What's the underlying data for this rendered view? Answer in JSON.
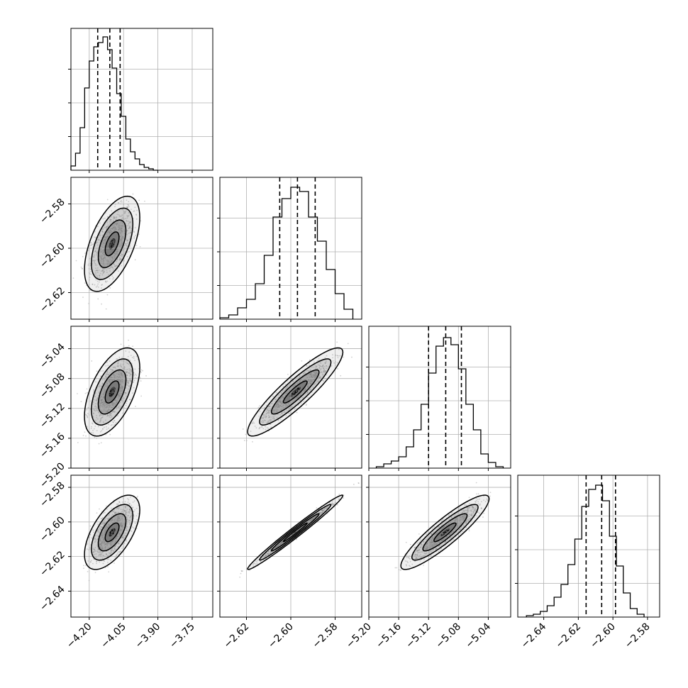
{
  "chart_data": {
    "type": "corner",
    "title": "",
    "grid": true,
    "parameters": [
      {
        "range": [
          -4.28,
          -3.66
        ],
        "ticks": [
          -4.2,
          -4.05,
          -3.9,
          -3.75
        ],
        "tick_labels": [
          "−4.20",
          "−4.05",
          "−3.90",
          "−3.75"
        ],
        "mean": -4.1,
        "std": 0.045,
        "quantiles": [
          -4.163,
          -4.11,
          -4.065
        ]
      },
      {
        "range": [
          -2.632,
          -2.568
        ],
        "ticks": [
          -2.62,
          -2.6,
          -2.58
        ],
        "tick_labels": [
          "−2.62",
          "−2.60",
          "−2.58"
        ],
        "mean": -2.598,
        "std": 0.008,
        "quantiles": [
          -2.605,
          -2.597,
          -2.589
        ]
      },
      {
        "range": [
          -5.2,
          -5.01
        ],
        "ticks": [
          -5.2,
          -5.16,
          -5.12,
          -5.08,
          -5.04
        ],
        "tick_labels": [
          "−5.20",
          "−5.16",
          "−5.12",
          "−5.08",
          "−5.04"
        ],
        "mean": -5.098,
        "std": 0.022,
        "quantiles": [
          -5.12,
          -5.097,
          -5.076
        ]
      },
      {
        "range": [
          -2.655,
          -2.573
        ],
        "ticks": [
          -2.64,
          -2.62,
          -2.6,
          -2.58
        ],
        "tick_labels": [
          "−2.64",
          "−2.62",
          "−2.60",
          "−2.58"
        ],
        "mean": -2.606,
        "std": 0.008,
        "quantiles": [
          -2.6155,
          -2.6065,
          -2.5985
        ]
      }
    ],
    "histograms": [
      {
        "parameter": 0,
        "bin_edges": [
          -4.28,
          -4.26,
          -4.24,
          -4.22,
          -4.2,
          -4.18,
          -4.16,
          -4.14,
          -4.12,
          -4.1,
          -4.08,
          -4.06,
          -4.04,
          -4.02,
          -4.0,
          -3.98,
          -3.96,
          -3.94,
          -3.92,
          -3.9
        ],
        "counts": [
          0.03,
          0.12,
          0.3,
          0.58,
          0.77,
          0.87,
          0.9,
          0.94,
          0.85,
          0.72,
          0.54,
          0.38,
          0.22,
          0.13,
          0.08,
          0.04,
          0.02,
          0.01,
          0.0
        ]
      },
      {
        "parameter": 1,
        "bin_edges": [
          -2.632,
          -2.628,
          -2.624,
          -2.62,
          -2.616,
          -2.612,
          -2.608,
          -2.604,
          -2.6,
          -2.596,
          -2.592,
          -2.588,
          -2.584,
          -2.58,
          -2.576,
          -2.572
        ],
        "counts": [
          0.01,
          0.03,
          0.08,
          0.14,
          0.25,
          0.45,
          0.72,
          0.85,
          0.93,
          0.9,
          0.72,
          0.55,
          0.35,
          0.18,
          0.07
        ]
      },
      {
        "parameter": 2,
        "bin_edges": [
          -5.19,
          -5.18,
          -5.17,
          -5.16,
          -5.15,
          -5.14,
          -5.13,
          -5.12,
          -5.11,
          -5.1,
          -5.09,
          -5.08,
          -5.07,
          -5.06,
          -5.05,
          -5.04,
          -5.03,
          -5.02
        ],
        "counts": [
          0.01,
          0.03,
          0.05,
          0.08,
          0.15,
          0.27,
          0.45,
          0.67,
          0.86,
          0.92,
          0.87,
          0.7,
          0.45,
          0.27,
          0.1,
          0.04,
          0.01
        ]
      },
      {
        "parameter": 3,
        "bin_edges": [
          -2.65,
          -2.646,
          -2.642,
          -2.638,
          -2.634,
          -2.63,
          -2.626,
          -2.622,
          -2.618,
          -2.614,
          -2.61,
          -2.606,
          -2.602,
          -2.598,
          -2.594,
          -2.59,
          -2.586,
          -2.582
        ],
        "counts": [
          0.01,
          0.02,
          0.04,
          0.08,
          0.14,
          0.23,
          0.37,
          0.55,
          0.78,
          0.9,
          0.93,
          0.82,
          0.57,
          0.36,
          0.17,
          0.06,
          0.02
        ]
      }
    ],
    "joint_distributions": [
      {
        "x_param": 0,
        "y_param": 1,
        "correlation": 0.55
      },
      {
        "x_param": 0,
        "y_param": 2,
        "correlation": 0.55
      },
      {
        "x_param": 1,
        "y_param": 2,
        "correlation": 0.9
      },
      {
        "x_param": 0,
        "y_param": 3,
        "correlation": 0.6
      },
      {
        "x_param": 1,
        "y_param": 3,
        "correlation": 0.985
      },
      {
        "x_param": 2,
        "y_param": 3,
        "correlation": 0.9
      }
    ],
    "contour_levels_sigma": [
      0.5,
      1.0,
      1.5,
      2.0
    ],
    "colors": {
      "line": "#000000",
      "points": "#7f7f7f",
      "grid": "#b0b0b0"
    }
  }
}
